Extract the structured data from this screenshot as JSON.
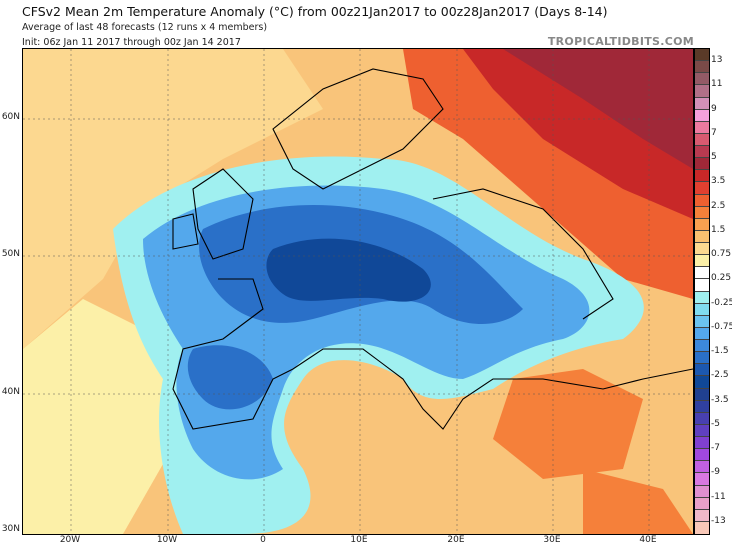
{
  "title": "CFSv2 Mean 2m Temperature Anomaly (°C) from 00z21Jan2017 to 00z28Jan2017 (Days 8-14)",
  "subtitle": "Average of last 48 forecasts (12 runs x 4 members)",
  "init": "Init: 06z Jan 11 2017 through 00z Jan 14 2017",
  "brand": "TROPICALTIDBITS.COM",
  "lat_labels": [
    "60N",
    "50N",
    "40N",
    "30N"
  ],
  "lon_labels": [
    "20W",
    "10W",
    "0",
    "10E",
    "20E",
    "30E",
    "40E"
  ],
  "colorbar": {
    "labels": [
      "13",
      "11",
      "9",
      "7",
      "5",
      "3.5",
      "2.5",
      "1.5",
      "0.75",
      "0.25",
      "-0.25",
      "-0.75",
      "-1.5",
      "-2.5",
      "-3.5",
      "-5",
      "-7",
      "-9",
      "-11",
      "-13"
    ],
    "colors": [
      "#5a3a28",
      "#7a4a48",
      "#935a66",
      "#b07088",
      "#d290b8",
      "#f5a0dc",
      "#ec7aa0",
      "#d85a70",
      "#b83a50",
      "#a02838",
      "#c82828",
      "#e04030",
      "#ee6030",
      "#f5803a",
      "#f8a050",
      "#fac070",
      "#fcd890",
      "#fcf0a8",
      "#ffffff",
      "#ffffff",
      "#a0f0f0",
      "#80dcf0",
      "#6cc4f0",
      "#54a8ec",
      "#3c88dc",
      "#2a70c8",
      "#1c58b0",
      "#104898",
      "#204090",
      "#3040a0",
      "#4840b0",
      "#6040c0",
      "#8040d0",
      "#a048e0",
      "#c060e0",
      "#d878e0",
      "#e090d0",
      "#e8a0c8",
      "#f0b8c8",
      "#f8c8b8"
    ]
  }
}
